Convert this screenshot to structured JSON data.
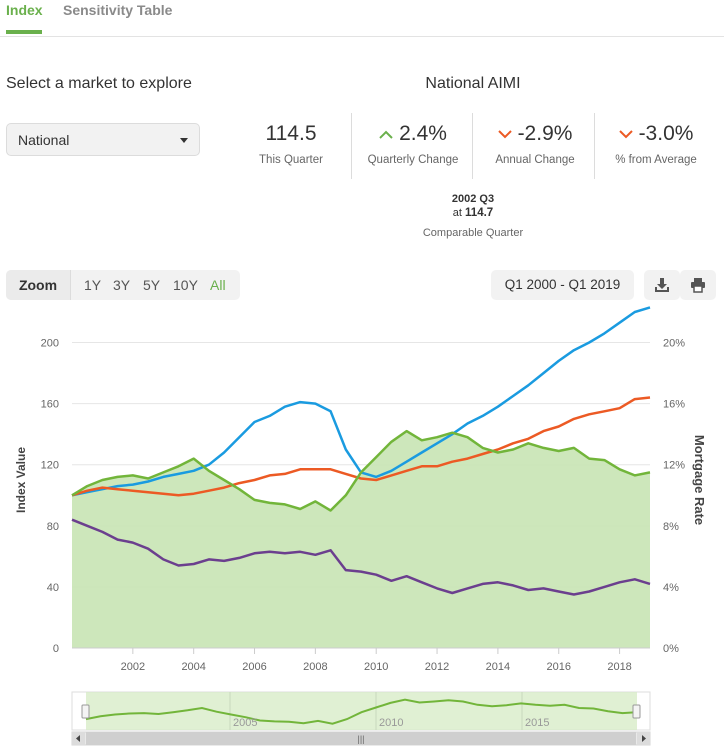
{
  "tabs": [
    {
      "label": "Index",
      "active": true
    },
    {
      "label": "Sensitivity Table",
      "active": false
    }
  ],
  "market": {
    "title": "Select a market to explore",
    "selected": "National"
  },
  "aimi": {
    "title": "National AIMI",
    "metrics": [
      {
        "value": "114.5",
        "label": "This Quarter",
        "arrow": "none"
      },
      {
        "value": "2.4%",
        "label": "Quarterly Change",
        "arrow": "up"
      },
      {
        "value": "-2.9%",
        "label": "Annual Change",
        "arrow": "down"
      },
      {
        "value": "-3.0%",
        "label": "% from Average",
        "arrow": "down"
      }
    ],
    "comparable": {
      "quarter": "2002 Q3",
      "at_prefix": "at",
      "value": "114.7",
      "label": "Comparable Quarter"
    }
  },
  "zoom": {
    "label": "Zoom",
    "options": [
      "1Y",
      "3Y",
      "5Y",
      "10Y",
      "All"
    ],
    "active": "All"
  },
  "range": {
    "text": "Q1 2000 - Q1 2019"
  },
  "toolbar": {
    "download_icon": "download-icon",
    "print_icon": "printer-icon"
  },
  "colors": {
    "accent": "#6ab04c",
    "blue": "#1a9be0",
    "orange": "#ec5a24",
    "purple": "#6b3f8e",
    "green": "#72b53a",
    "area": "#c8e4b4"
  },
  "chart_data": {
    "type": "line",
    "xlabel": "",
    "ylabel": "Index Value",
    "y2label": "Mortgage Rate",
    "xlim": [
      2000,
      2019
    ],
    "ylim": [
      0,
      220
    ],
    "y2lim": [
      0,
      22
    ],
    "x_ticks": [
      "2002",
      "2004",
      "2006",
      "2008",
      "2010",
      "2012",
      "2014",
      "2016",
      "2018"
    ],
    "y_ticks": [
      "0",
      "40",
      "80",
      "120",
      "160",
      "200"
    ],
    "y2_ticks": [
      "0%",
      "4%",
      "8%",
      "12%",
      "16%",
      "20%"
    ],
    "grid": true,
    "series": [
      {
        "key": "blue",
        "axis": "left",
        "values": [
          [
            2000,
            100
          ],
          [
            2000.5,
            102
          ],
          [
            2001,
            104
          ],
          [
            2001.5,
            106
          ],
          [
            2002,
            107
          ],
          [
            2002.5,
            109
          ],
          [
            2003,
            112
          ],
          [
            2003.5,
            114
          ],
          [
            2004,
            116
          ],
          [
            2004.5,
            120
          ],
          [
            2005,
            128
          ],
          [
            2005.5,
            138
          ],
          [
            2006,
            148
          ],
          [
            2006.5,
            152
          ],
          [
            2007,
            158
          ],
          [
            2007.5,
            161
          ],
          [
            2008,
            160
          ],
          [
            2008.5,
            155
          ],
          [
            2009,
            130
          ],
          [
            2009.5,
            115
          ],
          [
            2010,
            112
          ],
          [
            2010.5,
            116
          ],
          [
            2011,
            122
          ],
          [
            2011.5,
            128
          ],
          [
            2012,
            134
          ],
          [
            2012.5,
            140
          ],
          [
            2013,
            147
          ],
          [
            2013.5,
            152
          ],
          [
            2014,
            158
          ],
          [
            2014.5,
            165
          ],
          [
            2015,
            172
          ],
          [
            2015.5,
            180
          ],
          [
            2016,
            188
          ],
          [
            2016.5,
            195
          ],
          [
            2017,
            200
          ],
          [
            2017.5,
            206
          ],
          [
            2018,
            213
          ],
          [
            2018.5,
            220
          ],
          [
            2019,
            223
          ]
        ]
      },
      {
        "key": "orange",
        "axis": "left",
        "values": [
          [
            2000,
            100
          ],
          [
            2000.5,
            103
          ],
          [
            2001,
            105
          ],
          [
            2001.5,
            104
          ],
          [
            2002,
            103
          ],
          [
            2002.5,
            102
          ],
          [
            2003,
            101
          ],
          [
            2003.5,
            100
          ],
          [
            2004,
            101
          ],
          [
            2004.5,
            103
          ],
          [
            2005,
            105
          ],
          [
            2005.5,
            108
          ],
          [
            2006,
            110
          ],
          [
            2006.5,
            113
          ],
          [
            2007,
            114
          ],
          [
            2007.5,
            117
          ],
          [
            2008,
            117
          ],
          [
            2008.5,
            117
          ],
          [
            2009,
            114
          ],
          [
            2009.5,
            111
          ],
          [
            2010,
            110
          ],
          [
            2010.5,
            113
          ],
          [
            2011,
            116
          ],
          [
            2011.5,
            119
          ],
          [
            2012,
            119
          ],
          [
            2012.5,
            122
          ],
          [
            2013,
            124
          ],
          [
            2013.5,
            127
          ],
          [
            2014,
            130
          ],
          [
            2014.5,
            134
          ],
          [
            2015,
            137
          ],
          [
            2015.5,
            142
          ],
          [
            2016,
            145
          ],
          [
            2016.5,
            150
          ],
          [
            2017,
            153
          ],
          [
            2017.5,
            155
          ],
          [
            2018,
            157
          ],
          [
            2018.5,
            163
          ],
          [
            2019,
            164
          ]
        ]
      },
      {
        "key": "green",
        "axis": "left",
        "area": true,
        "values": [
          [
            2000,
            100
          ],
          [
            2000.5,
            106
          ],
          [
            2001,
            110
          ],
          [
            2001.5,
            112
          ],
          [
            2002,
            113
          ],
          [
            2002.5,
            111
          ],
          [
            2003,
            115
          ],
          [
            2003.5,
            119
          ],
          [
            2004,
            124
          ],
          [
            2004.5,
            116
          ],
          [
            2005,
            110
          ],
          [
            2005.5,
            104
          ],
          [
            2006,
            97
          ],
          [
            2006.5,
            95
          ],
          [
            2007,
            94
          ],
          [
            2007.5,
            91
          ],
          [
            2008,
            96
          ],
          [
            2008.5,
            90
          ],
          [
            2009,
            100
          ],
          [
            2009.5,
            115
          ],
          [
            2010,
            125
          ],
          [
            2010.5,
            135
          ],
          [
            2011,
            142
          ],
          [
            2011.5,
            136
          ],
          [
            2012,
            138
          ],
          [
            2012.5,
            141
          ],
          [
            2013,
            138
          ],
          [
            2013.5,
            131
          ],
          [
            2014,
            128
          ],
          [
            2014.5,
            130
          ],
          [
            2015,
            134
          ],
          [
            2015.5,
            131
          ],
          [
            2016,
            129
          ],
          [
            2016.5,
            131
          ],
          [
            2017,
            124
          ],
          [
            2017.5,
            123
          ],
          [
            2018,
            117
          ],
          [
            2018.5,
            113
          ],
          [
            2019,
            115
          ]
        ]
      },
      {
        "key": "purple",
        "axis": "right",
        "values": [
          [
            2000,
            8.4
          ],
          [
            2000.5,
            8.0
          ],
          [
            2001,
            7.6
          ],
          [
            2001.5,
            7.1
          ],
          [
            2002,
            6.9
          ],
          [
            2002.5,
            6.5
          ],
          [
            2003,
            5.8
          ],
          [
            2003.5,
            5.4
          ],
          [
            2004,
            5.5
          ],
          [
            2004.5,
            5.8
          ],
          [
            2005,
            5.7
          ],
          [
            2005.5,
            5.9
          ],
          [
            2006,
            6.2
          ],
          [
            2006.5,
            6.3
          ],
          [
            2007,
            6.2
          ],
          [
            2007.5,
            6.3
          ],
          [
            2008,
            6.1
          ],
          [
            2008.5,
            6.4
          ],
          [
            2009,
            5.1
          ],
          [
            2009.5,
            5.0
          ],
          [
            2010,
            4.8
          ],
          [
            2010.5,
            4.4
          ],
          [
            2011,
            4.7
          ],
          [
            2011.5,
            4.3
          ],
          [
            2012,
            3.9
          ],
          [
            2012.5,
            3.6
          ],
          [
            2013,
            3.9
          ],
          [
            2013.5,
            4.2
          ],
          [
            2014,
            4.3
          ],
          [
            2014.5,
            4.1
          ],
          [
            2015,
            3.8
          ],
          [
            2015.5,
            3.9
          ],
          [
            2016,
            3.7
          ],
          [
            2016.5,
            3.5
          ],
          [
            2017,
            3.7
          ],
          [
            2017.5,
            4.0
          ],
          [
            2018,
            4.3
          ],
          [
            2018.5,
            4.5
          ],
          [
            2019,
            4.2
          ]
        ]
      }
    ]
  },
  "navigator": {
    "labels": [
      "2005",
      "2010",
      "2015"
    ],
    "scroll_grip": "|||"
  }
}
